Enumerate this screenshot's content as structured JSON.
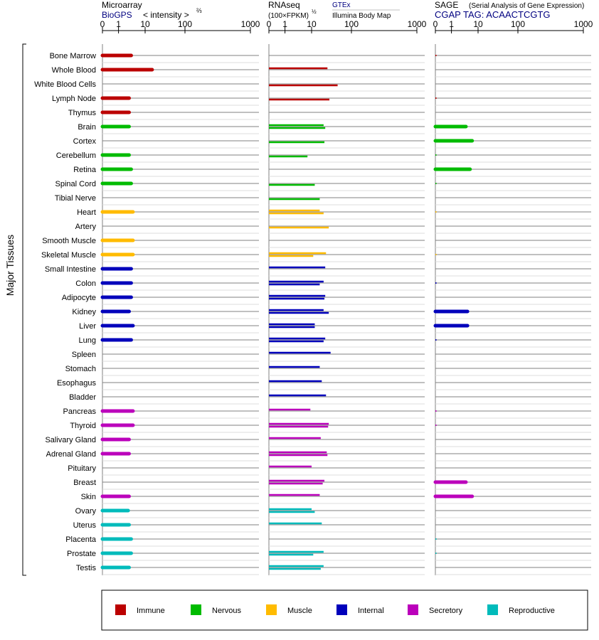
{
  "colors": {
    "immune": "#bb0000",
    "nervous": "#00bb00",
    "muscle": "#ffbb00",
    "internal": "#0000bb",
    "secretory": "#bb00bb",
    "reproductive": "#00bbbb",
    "link": "#000080",
    "grid": "#808080",
    "grid_light": "#c8c8c8"
  },
  "panels": {
    "microarray": {
      "title": "Microarray",
      "subtitle": "BioGPS",
      "unit": "< intensity >",
      "unit_exp": "⅔"
    },
    "rnaseq": {
      "title": "RNAseq",
      "unit": "(100×FPKM)",
      "unit_exp": "½",
      "source1": "GTEx",
      "source2": "Illumina Body Map"
    },
    "sage": {
      "title": "SAGE",
      "title_note": "(Serial Analysis of Gene Expression)",
      "subtitle": "CGAP TAG: ACAACTCGTG"
    }
  },
  "y_axis_label": "Major Tissues",
  "legend": [
    {
      "key": "immune",
      "label": "Immune"
    },
    {
      "key": "nervous",
      "label": "Nervous"
    },
    {
      "key": "muscle",
      "label": "Muscle"
    },
    {
      "key": "internal",
      "label": "Internal"
    },
    {
      "key": "secretory",
      "label": "Secretory"
    },
    {
      "key": "reproductive",
      "label": "Reproductive"
    }
  ],
  "chart_data": {
    "type": "bar",
    "orientation": "horizontal",
    "x_scale": "transformed (power)",
    "xlim": [
      0,
      1000
    ],
    "x_ticks": [
      "0",
      "1",
      "10",
      "100",
      "1000"
    ],
    "categories": [
      "Bone Marrow",
      "Whole Blood",
      "White Blood Cells",
      "Lymph Node",
      "Thymus",
      "Brain",
      "Cortex",
      "Cerebellum",
      "Retina",
      "Spinal Cord",
      "Tibial Nerve",
      "Heart",
      "Artery",
      "Smooth Muscle",
      "Skeletal Muscle",
      "Small Intestine",
      "Colon",
      "Adipocyte",
      "Kidney",
      "Liver",
      "Lung",
      "Spleen",
      "Stomach",
      "Esophagus",
      "Bladder",
      "Pancreas",
      "Thyroid",
      "Salivary Gland",
      "Adrenal Gland",
      "Pituitary",
      "Breast",
      "Skin",
      "Ovary",
      "Uterus",
      "Placenta",
      "Prostate",
      "Testis"
    ],
    "groups": [
      "immune",
      "immune",
      "immune",
      "immune",
      "immune",
      "nervous",
      "nervous",
      "nervous",
      "nervous",
      "nervous",
      "nervous",
      "muscle",
      "muscle",
      "muscle",
      "muscle",
      "internal",
      "internal",
      "internal",
      "internal",
      "internal",
      "internal",
      "internal",
      "internal",
      "internal",
      "internal",
      "secretory",
      "secretory",
      "secretory",
      "secretory",
      "secretory",
      "secretory",
      "secretory",
      "reproductive",
      "reproductive",
      "reproductive",
      "reproductive",
      "reproductive"
    ],
    "series": [
      {
        "name": "Microarray",
        "values": [
          3,
          15,
          null,
          2.5,
          2.5,
          2.5,
          null,
          2.5,
          3,
          3,
          null,
          3.5,
          null,
          3.5,
          3.5,
          3,
          3,
          3,
          2.5,
          3.5,
          3,
          null,
          null,
          null,
          null,
          3.5,
          3.5,
          2.5,
          2.5,
          null,
          null,
          2.5,
          2.3,
          2.5,
          3,
          3,
          2.5
        ]
      },
      {
        "name": "RNAseq (GTEx)",
        "values": [
          null,
          25,
          null,
          null,
          null,
          20,
          null,
          null,
          null,
          null,
          null,
          16,
          null,
          null,
          23,
          22,
          20,
          22,
          20,
          12,
          22,
          30,
          16,
          18,
          23,
          9,
          27,
          17,
          24,
          10,
          21,
          16,
          10,
          18,
          null,
          20,
          20
        ]
      },
      {
        "name": "RNAseq (Illumina Body Map)",
        "values": [
          null,
          null,
          45,
          28,
          null,
          22,
          21,
          7,
          null,
          12,
          16,
          20,
          27,
          null,
          11,
          null,
          16,
          21,
          27,
          12,
          20,
          null,
          null,
          null,
          null,
          null,
          26,
          null,
          25,
          null,
          19,
          null,
          12,
          null,
          null,
          11,
          17
        ]
      },
      {
        "name": "SAGE",
        "values": [
          0.05,
          null,
          null,
          0.05,
          null,
          3.5,
          6,
          0.03,
          5,
          0.03,
          null,
          0.01,
          null,
          null,
          0.01,
          null,
          0.05,
          null,
          4,
          4,
          0.05,
          null,
          null,
          null,
          null,
          0.05,
          0.05,
          null,
          null,
          null,
          3.5,
          6,
          null,
          null,
          0.02,
          0.02,
          null
        ]
      }
    ]
  }
}
